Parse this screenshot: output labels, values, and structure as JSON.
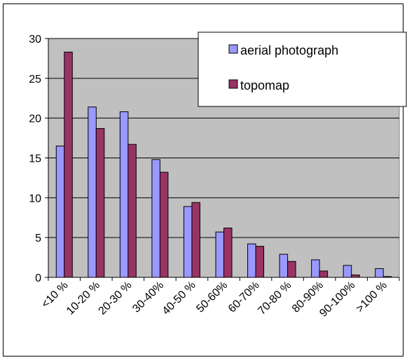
{
  "chart_data": {
    "type": "bar",
    "categories": [
      "<10 %",
      "10-20 %",
      "20-30 %",
      "30-40%",
      "40-50 %",
      "50-60%",
      "60-70%",
      "70-80 %",
      "80-90%",
      "90-100%",
      ">100 %"
    ],
    "series": [
      {
        "name": "aerial photograph",
        "color": "#9999ff",
        "values": [
          16.5,
          21.4,
          20.8,
          14.8,
          8.9,
          5.7,
          4.2,
          2.9,
          2.2,
          1.5,
          1.1
        ]
      },
      {
        "name": "topomap",
        "color": "#993366",
        "values": [
          28.3,
          18.7,
          16.7,
          13.2,
          9.4,
          6.2,
          3.9,
          2.0,
          0.8,
          0.3,
          0.1
        ]
      }
    ],
    "ylim": [
      0,
      30
    ],
    "yticks": [
      0,
      5,
      10,
      15,
      20,
      25,
      30
    ],
    "title": "",
    "xlabel": "",
    "ylabel": "",
    "grid": true,
    "plot_background": "#c0c0c0",
    "legend_position": "top-right"
  }
}
